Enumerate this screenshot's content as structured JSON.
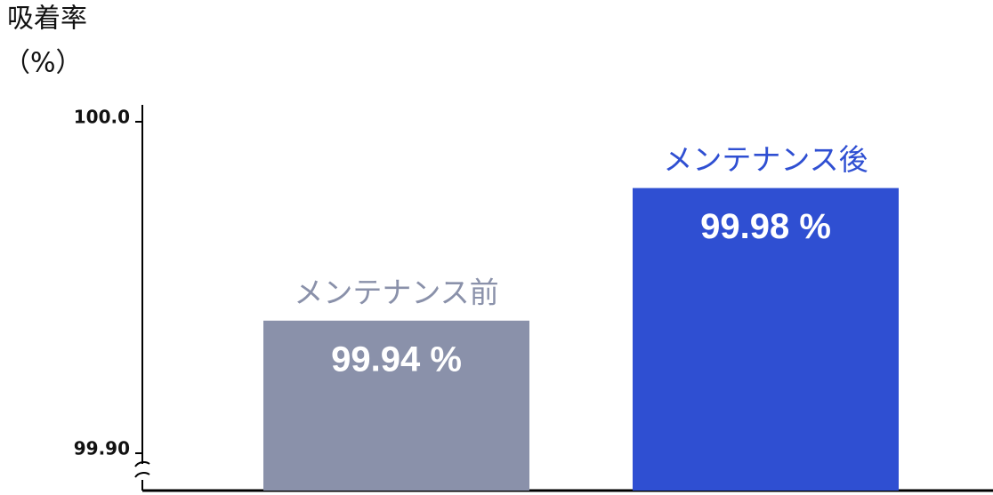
{
  "chart_data": {
    "type": "bar",
    "y_label": "吸着率",
    "y_unit": "（%）",
    "categories": [
      "メンテナンス前",
      "メンテナンス後"
    ],
    "values": [
      99.94,
      99.98
    ],
    "value_labels": [
      "99.94 %",
      "99.98 %"
    ],
    "colors": [
      "#8a91aa",
      "#2f4fd2"
    ],
    "ylim": [
      99.9,
      100.0
    ],
    "yticks": [
      {
        "value": 99.9,
        "label": "99.90"
      },
      {
        "value": 100.0,
        "label": "100.0"
      }
    ],
    "axis_break": true
  }
}
